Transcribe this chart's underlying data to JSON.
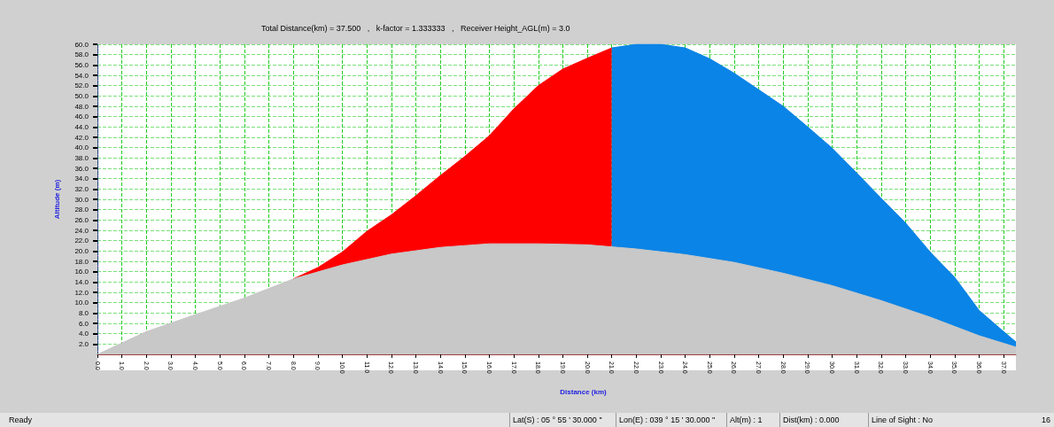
{
  "chart_data": {
    "type": "area",
    "title": "Total Distance(km) = 37.500   ,   k-factor = 1.333333   ,   Receiver Height_AGL(m) = 3.0",
    "xlabel": "Distance (km)",
    "ylabel": "Altitude (m)",
    "xlim": [
      0,
      37.5
    ],
    "ylim": [
      0,
      60
    ],
    "xticks": [
      {
        "value": 0,
        "label": "0.0"
      },
      {
        "value": 1,
        "label": "1.0"
      },
      {
        "value": 2,
        "label": "2.0"
      },
      {
        "value": 3,
        "label": "3.0"
      },
      {
        "value": 4,
        "label": "4.0"
      },
      {
        "value": 5,
        "label": "5.0"
      },
      {
        "value": 6,
        "label": "6.0"
      },
      {
        "value": 7,
        "label": "7.0"
      },
      {
        "value": 8,
        "label": "8.0"
      },
      {
        "value": 9,
        "label": "9.0"
      },
      {
        "value": 10,
        "label": "10.0"
      },
      {
        "value": 11,
        "label": "11.0"
      },
      {
        "value": 12,
        "label": "12.0"
      },
      {
        "value": 13,
        "label": "13.0"
      },
      {
        "value": 14,
        "label": "14.0"
      },
      {
        "value": 15,
        "label": "15.0"
      },
      {
        "value": 16,
        "label": "16.0"
      },
      {
        "value": 17,
        "label": "17.0"
      },
      {
        "value": 18,
        "label": "18.0"
      },
      {
        "value": 19,
        "label": "19.0"
      },
      {
        "value": 20,
        "label": "20.0"
      },
      {
        "value": 21,
        "label": "21.0"
      },
      {
        "value": 22,
        "label": "22.0"
      },
      {
        "value": 23,
        "label": "23.0"
      },
      {
        "value": 24,
        "label": "24.0"
      },
      {
        "value": 25,
        "label": "25.0"
      },
      {
        "value": 26,
        "label": "26.0"
      },
      {
        "value": 27,
        "label": "27.0"
      },
      {
        "value": 28,
        "label": "28.0"
      },
      {
        "value": 29,
        "label": "29.0"
      },
      {
        "value": 30,
        "label": "30.0"
      },
      {
        "value": 31,
        "label": "31.0"
      },
      {
        "value": 32,
        "label": "32.0"
      },
      {
        "value": 33,
        "label": "33.0"
      },
      {
        "value": 34,
        "label": "34.0"
      },
      {
        "value": 35,
        "label": "35.0"
      },
      {
        "value": 36,
        "label": "36.0"
      },
      {
        "value": 37,
        "label": "37.0"
      }
    ],
    "yticks": [
      {
        "value": 2,
        "label": "2.0"
      },
      {
        "value": 4,
        "label": "4.0"
      },
      {
        "value": 6,
        "label": "6.0"
      },
      {
        "value": 8,
        "label": "8.0"
      },
      {
        "value": 10,
        "label": "10.0"
      },
      {
        "value": 12,
        "label": "12.0"
      },
      {
        "value": 14,
        "label": "14.0"
      },
      {
        "value": 16,
        "label": "16.0"
      },
      {
        "value": 18,
        "label": "18.0"
      },
      {
        "value": 20,
        "label": "20.0"
      },
      {
        "value": 22,
        "label": "22.0"
      },
      {
        "value": 24,
        "label": "24.0"
      },
      {
        "value": 26,
        "label": "26.0"
      },
      {
        "value": 28,
        "label": "28.0"
      },
      {
        "value": 30,
        "label": "30.0"
      },
      {
        "value": 32,
        "label": "32.0"
      },
      {
        "value": 34,
        "label": "34.0"
      },
      {
        "value": 36,
        "label": "36.0"
      },
      {
        "value": 38,
        "label": "38.0"
      },
      {
        "value": 40,
        "label": "40.0"
      },
      {
        "value": 42,
        "label": "42.0"
      },
      {
        "value": 44,
        "label": "44.0"
      },
      {
        "value": 46,
        "label": "46.0"
      },
      {
        "value": 48,
        "label": "48.0"
      },
      {
        "value": 50,
        "label": "50.0"
      },
      {
        "value": 52,
        "label": "52.0"
      },
      {
        "value": 54,
        "label": "54.0"
      },
      {
        "value": 56,
        "label": "56.0"
      },
      {
        "value": 58,
        "label": "58.0"
      },
      {
        "value": 60,
        "label": "60.0"
      }
    ],
    "grid": true,
    "marker": "none",
    "series": [
      {
        "color": "#ff0000",
        "x": [
          8,
          9,
          10,
          11,
          12,
          13,
          14,
          15,
          16,
          17,
          18,
          19,
          20,
          21
        ],
        "values": [
          14.6,
          16.8,
          19.8,
          23.8,
          27,
          30.7,
          34.6,
          38.3,
          42.3,
          47.5,
          52,
          55.2,
          57.3,
          59.3
        ]
      },
      {
        "color": "#0a84e6",
        "x": [
          21,
          22,
          22.5,
          23,
          24,
          25,
          26,
          27,
          28,
          29,
          30,
          31,
          32,
          33,
          34,
          35,
          36,
          37,
          37.5
        ],
        "values": [
          59.3,
          60,
          60,
          60,
          59.3,
          57.2,
          54.4,
          51.2,
          48,
          44,
          39.9,
          35.1,
          30.2,
          25.4,
          19.8,
          14.9,
          8.5,
          4.4,
          2.4
        ]
      },
      {
        "color": "#c8c8c8",
        "x": [
          0,
          2,
          4,
          6,
          8,
          10,
          12,
          14,
          16,
          18,
          20,
          22,
          24,
          26,
          28,
          30,
          32,
          34,
          36,
          37.5
        ],
        "values": [
          0,
          4.4,
          7.7,
          10.9,
          14.6,
          17.3,
          19.4,
          20.7,
          21.4,
          21.4,
          21.2,
          20.4,
          19.3,
          17.8,
          15.7,
          13.3,
          10.4,
          7.2,
          3.6,
          1.4
        ]
      }
    ],
    "annotations": [
      "Ready",
      "Lat(S) : 05 ° 55 ' 30.000 ''",
      "Lon(E) : 039 ° 15 ' 30.000 ''",
      "Alt(m) : 1",
      "Dist(km) : 0.000",
      "Line of Sight : No",
      "16"
    ]
  }
}
